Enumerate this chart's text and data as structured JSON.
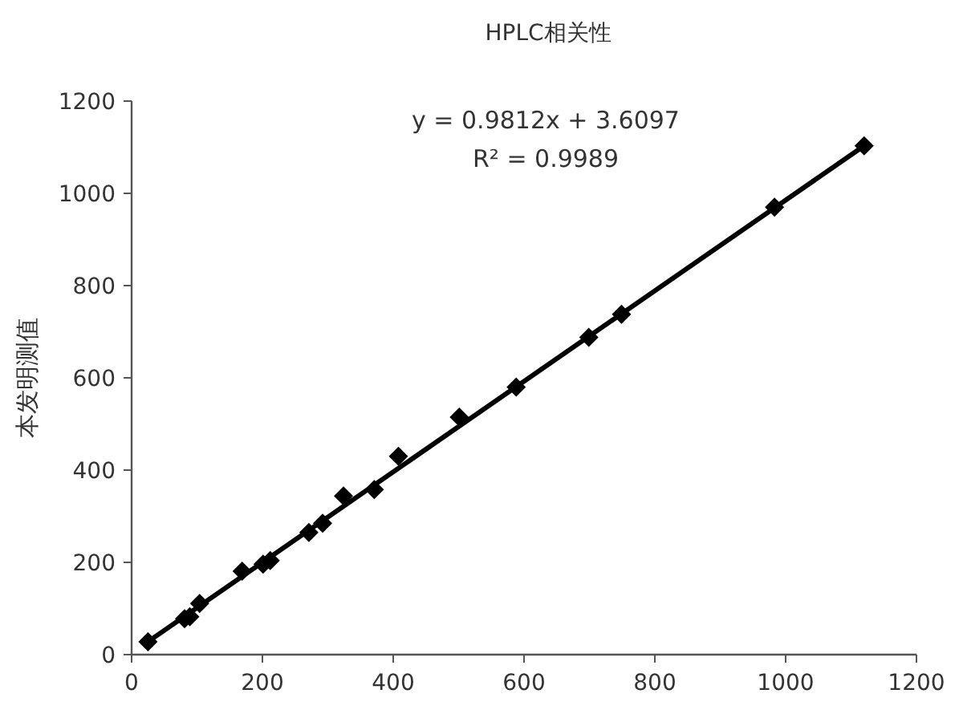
{
  "chart_data": {
    "type": "scatter",
    "title": "HPLC相关性",
    "ylabel": "本发明测值",
    "xlim": [
      0,
      1200
    ],
    "ylim": [
      0,
      1200
    ],
    "xticks": [
      0,
      200,
      400,
      600,
      800,
      1000,
      1200
    ],
    "yticks": [
      0,
      200,
      400,
      600,
      800,
      1000,
      1200
    ],
    "grid": false,
    "series": [
      {
        "marker": "diamond",
        "color": "#000000",
        "x": [
          25,
          81,
          89,
          104,
          169,
          201,
          212,
          271,
          292,
          324,
          371,
          408,
          501,
          588,
          699,
          749,
          983,
          1120
        ],
        "values": [
          28,
          78,
          82,
          111,
          181,
          196,
          204,
          265,
          285,
          344,
          358,
          430,
          515,
          580,
          688,
          738,
          970,
          1103
        ]
      },
      {
        "type": "line",
        "color": "#000000",
        "x": [
          25,
          1120
        ],
        "values": [
          28,
          1103
        ]
      }
    ],
    "annotations": [
      "y = 0.9812x + 3.6097",
      "R² = 0.9989"
    ]
  }
}
